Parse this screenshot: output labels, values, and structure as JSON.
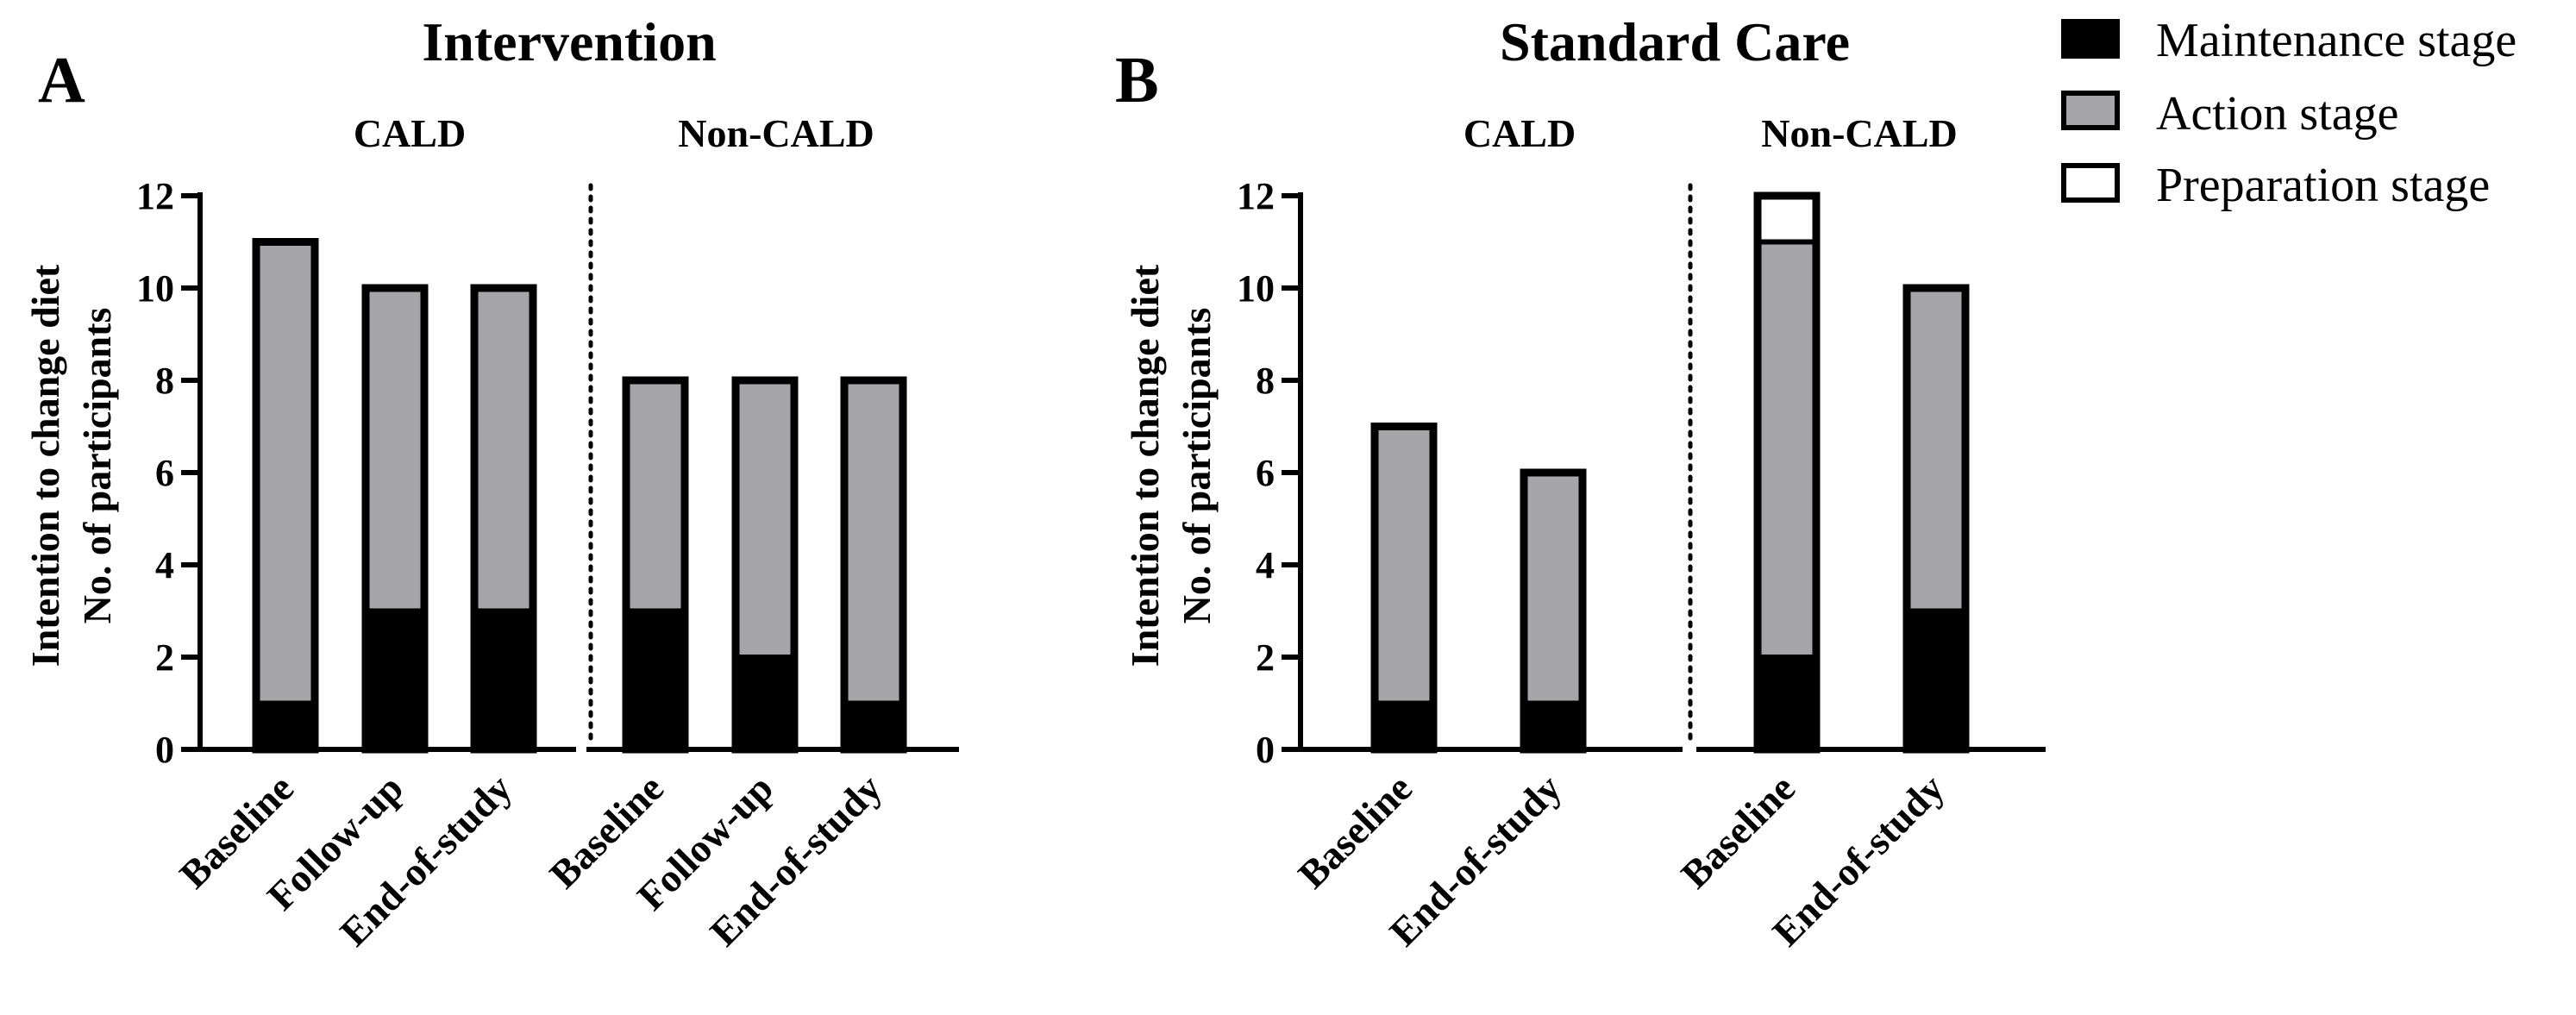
{
  "legend": {
    "items": [
      {
        "label": "Maintenance stage",
        "color": "#000000"
      },
      {
        "label": "Action stage",
        "color": "#a5a5aa"
      },
      {
        "label": "Preparation stage",
        "color": "#ffffff"
      }
    ]
  },
  "chart_data": [
    {
      "type": "bar",
      "stacked": true,
      "panel_letter": "A",
      "title": "Intervention",
      "ylabel": [
        "Intention to change diet",
        "No. of participants"
      ],
      "ylim": [
        0,
        12
      ],
      "yticks": [
        0,
        2,
        4,
        6,
        8,
        10,
        12
      ],
      "groups": [
        {
          "label": "CALD",
          "categories": [
            "Baseline",
            "Follow-up",
            "End-of-study"
          ]
        },
        {
          "label": "Non-CALD",
          "categories": [
            "Baseline",
            "Follow-up",
            "End-of-study"
          ]
        }
      ],
      "categories": [
        "Baseline",
        "Follow-up",
        "End-of-study",
        "Baseline",
        "Follow-up",
        "End-of-study"
      ],
      "series": [
        {
          "name": "Maintenance stage",
          "values": [
            1,
            3,
            3,
            3,
            2,
            1
          ]
        },
        {
          "name": "Action stage",
          "values": [
            10,
            7,
            7,
            5,
            6,
            7
          ]
        },
        {
          "name": "Preparation stage",
          "values": [
            0,
            0,
            0,
            0,
            0,
            0
          ]
        }
      ]
    },
    {
      "type": "bar",
      "stacked": true,
      "panel_letter": "B",
      "title": "Standard Care",
      "ylabel": [
        "Intention to change diet",
        "No. of participants"
      ],
      "ylim": [
        0,
        12
      ],
      "yticks": [
        0,
        2,
        4,
        6,
        8,
        10,
        12
      ],
      "groups": [
        {
          "label": "CALD",
          "categories": [
            "Baseline",
            "End-of-study"
          ]
        },
        {
          "label": "Non-CALD",
          "categories": [
            "Baseline",
            "End-of-study"
          ]
        }
      ],
      "categories": [
        "Baseline",
        "End-of-study",
        "Baseline",
        "End-of-study"
      ],
      "series": [
        {
          "name": "Maintenance stage",
          "values": [
            1,
            1,
            2,
            3
          ]
        },
        {
          "name": "Action stage",
          "values": [
            6,
            5,
            9,
            7
          ]
        },
        {
          "name": "Preparation stage",
          "values": [
            0,
            0,
            1,
            0
          ]
        }
      ]
    }
  ]
}
